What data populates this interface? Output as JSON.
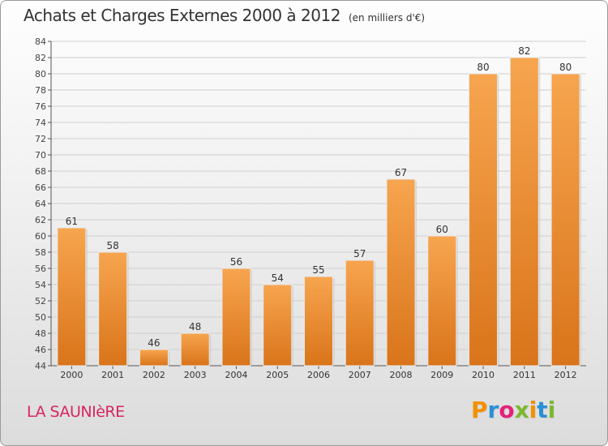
{
  "header": {
    "title": "Achats et Charges Externes 2000 à 2012",
    "units": "(en milliers d'€)"
  },
  "commune": "LA SAUNIèRE",
  "logo": {
    "text": "Proxiti",
    "letter_colors": [
      "#f39000",
      "#2a8fd6",
      "#e6207b",
      "#7cb82f",
      "#f39000",
      "#2a8fd6",
      "#7cb82f"
    ]
  },
  "colors": {
    "bar_light": "#f7a54f",
    "bar_dark": "#d9741a",
    "grid": "#cfcfcf",
    "title_text": "#333333",
    "commune_text": "#d8255f"
  },
  "chart_data": {
    "type": "bar",
    "categories": [
      "2000",
      "2001",
      "2002",
      "2003",
      "2004",
      "2005",
      "2006",
      "2007",
      "2008",
      "2009",
      "2010",
      "2011",
      "2012"
    ],
    "values": [
      61,
      58,
      46,
      48,
      56,
      54,
      55,
      57,
      67,
      60,
      80,
      82,
      80
    ],
    "ylim": [
      44,
      84
    ],
    "yticks": [
      44,
      46,
      48,
      50,
      52,
      54,
      56,
      58,
      60,
      62,
      64,
      66,
      68,
      70,
      72,
      74,
      76,
      78,
      80,
      82,
      84
    ],
    "grid": true,
    "data_labels": true
  }
}
